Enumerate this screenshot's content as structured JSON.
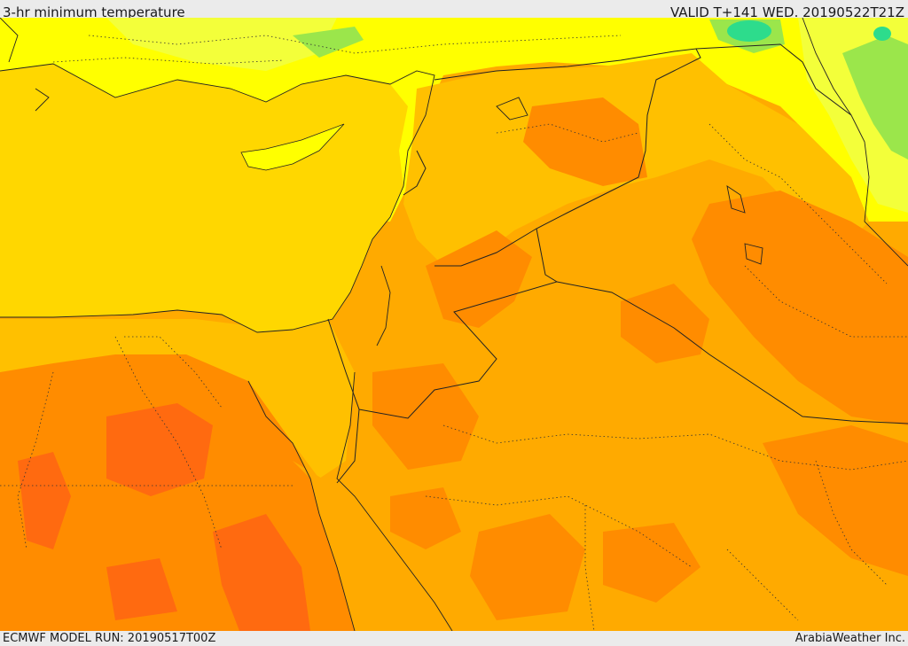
{
  "header": {
    "title": "3-hr minimum temperature",
    "valid_time": "VALID T+141 WED. 20190522T21Z"
  },
  "footer": {
    "model_run": "ECMWF MODEL RUN: 20190517T00Z",
    "credit": "ArabiaWeather Inc."
  },
  "map": {
    "palette": {
      "sea": "#ffd700",
      "yellow": "#ffff00",
      "light_yellow": "#f3ff3a",
      "gold": "#ffc000",
      "amber": "#ffaa00",
      "orange": "#ff8c00",
      "dark_orange": "#ff6a10",
      "green": "#9be64b",
      "teal": "#2ddc8c"
    }
  }
}
